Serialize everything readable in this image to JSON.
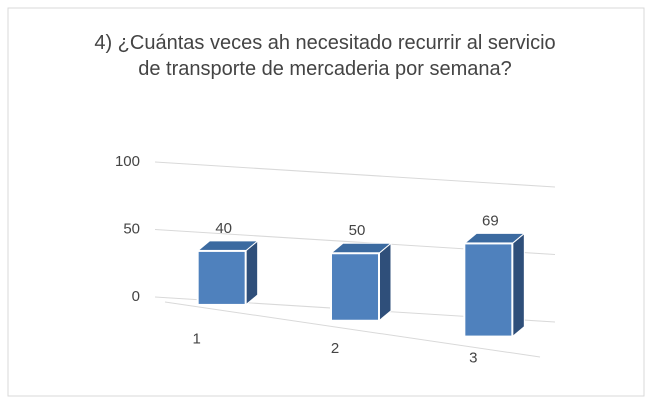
{
  "chart_data": {
    "type": "bar3d",
    "title": "4) ¿Cuántas veces ah necesitado recurrir al servicio de transporte de mercaderia por semana?",
    "categories": [
      "1",
      "2",
      "3"
    ],
    "values": [
      40,
      50,
      69
    ],
    "color": "#4f81bd",
    "ylim": [
      0,
      100
    ],
    "yticks": [
      0,
      50,
      100
    ],
    "grid": true
  }
}
